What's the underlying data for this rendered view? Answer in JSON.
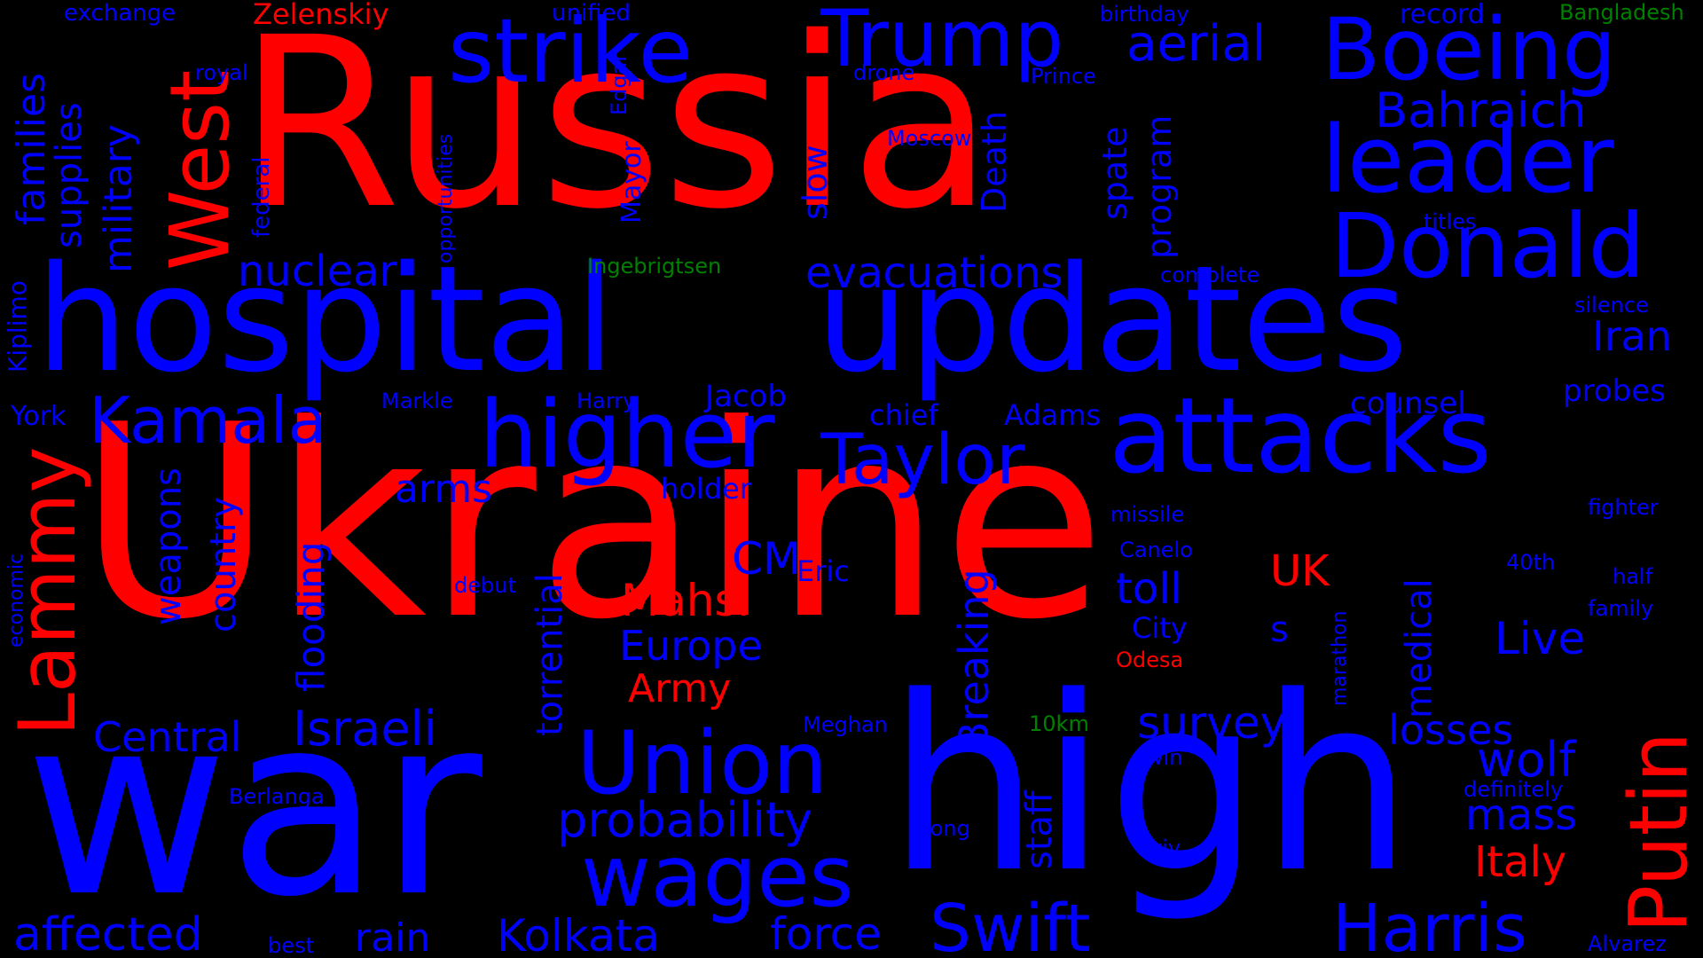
{
  "palette": {
    "red": "#ff0000",
    "blue": "#0000ff",
    "green": "#008000",
    "background": "#000000"
  },
  "words": [
    {
      "id": "ukraine",
      "text": "Ukraine",
      "color": "red"
    },
    {
      "id": "russia",
      "text": "Russia",
      "color": "red"
    },
    {
      "id": "war",
      "text": "war",
      "color": "blue"
    },
    {
      "id": "high",
      "text": "high",
      "color": "blue"
    },
    {
      "id": "hospital",
      "text": "hospital",
      "color": "blue"
    },
    {
      "id": "updates",
      "text": "updates",
      "color": "blue"
    },
    {
      "id": "attacks",
      "text": "attacks",
      "color": "blue"
    },
    {
      "id": "boeing",
      "text": "Boeing",
      "color": "blue"
    },
    {
      "id": "leader",
      "text": "leader",
      "color": "blue"
    },
    {
      "id": "donald",
      "text": "Donald",
      "color": "blue"
    },
    {
      "id": "strike",
      "text": "strike",
      "color": "blue"
    },
    {
      "id": "trump",
      "text": "Trump",
      "color": "blue"
    },
    {
      "id": "higher",
      "text": "higher",
      "color": "blue"
    },
    {
      "id": "union",
      "text": "Union",
      "color": "blue"
    },
    {
      "id": "wages",
      "text": "wages",
      "color": "blue"
    },
    {
      "id": "swift",
      "text": "Swift",
      "color": "blue"
    },
    {
      "id": "harris",
      "text": "Harris",
      "color": "blue"
    },
    {
      "id": "taylor",
      "text": "Taylor",
      "color": "blue"
    },
    {
      "id": "kamala",
      "text": "Kamala",
      "color": "blue"
    },
    {
      "id": "west",
      "text": "West",
      "color": "red"
    },
    {
      "id": "lammy",
      "text": "Lammy",
      "color": "red"
    },
    {
      "id": "putin",
      "text": "Putin",
      "color": "red"
    },
    {
      "id": "zelenskiy",
      "text": "Zelenskiy",
      "color": "red"
    },
    {
      "id": "mahsi",
      "text": "Mahsi",
      "color": "red"
    },
    {
      "id": "army",
      "text": "Army",
      "color": "red"
    },
    {
      "id": "uk",
      "text": "UK",
      "color": "red"
    },
    {
      "id": "italy",
      "text": "Italy",
      "color": "red"
    },
    {
      "id": "odesa",
      "text": "Odesa",
      "color": "red"
    },
    {
      "id": "bahraich",
      "text": "Bahraich",
      "color": "blue"
    },
    {
      "id": "aerial",
      "text": "aerial",
      "color": "blue"
    },
    {
      "id": "evacuations",
      "text": "evacuations",
      "color": "blue"
    },
    {
      "id": "nuclear",
      "text": "nuclear",
      "color": "blue"
    },
    {
      "id": "iran",
      "text": "Iran",
      "color": "blue"
    },
    {
      "id": "probability",
      "text": "probability",
      "color": "blue"
    },
    {
      "id": "kolkata",
      "text": "Kolkata",
      "color": "blue"
    },
    {
      "id": "force",
      "text": "force",
      "color": "blue"
    },
    {
      "id": "affected",
      "text": "affected",
      "color": "blue"
    },
    {
      "id": "rain",
      "text": "rain",
      "color": "blue"
    },
    {
      "id": "israeli",
      "text": "Israeli",
      "color": "blue"
    },
    {
      "id": "central",
      "text": "Central",
      "color": "blue"
    },
    {
      "id": "survey",
      "text": "survey",
      "color": "blue"
    },
    {
      "id": "losses",
      "text": "losses",
      "color": "blue"
    },
    {
      "id": "wolf",
      "text": "wolf",
      "color": "blue"
    },
    {
      "id": "mass",
      "text": "mass",
      "color": "blue"
    },
    {
      "id": "live",
      "text": "Live",
      "color": "blue"
    },
    {
      "id": "toll",
      "text": "toll",
      "color": "blue"
    },
    {
      "id": "europe",
      "text": "Europe",
      "color": "blue"
    },
    {
      "id": "cm",
      "text": "CM",
      "color": "blue"
    },
    {
      "id": "arms",
      "text": "arms",
      "color": "blue"
    },
    {
      "id": "military",
      "text": "military",
      "color": "blue"
    },
    {
      "id": "supplies",
      "text": "supplies",
      "color": "blue"
    },
    {
      "id": "families",
      "text": "families",
      "color": "blue"
    },
    {
      "id": "weapons",
      "text": "weapons",
      "color": "blue"
    },
    {
      "id": "country",
      "text": "country",
      "color": "blue"
    },
    {
      "id": "flooding",
      "text": "flooding",
      "color": "blue"
    },
    {
      "id": "torrential",
      "text": "torrential",
      "color": "blue"
    },
    {
      "id": "breaking",
      "text": "Breaking",
      "color": "blue"
    },
    {
      "id": "staff",
      "text": "staff",
      "color": "blue"
    },
    {
      "id": "medical",
      "text": "medical",
      "color": "blue"
    },
    {
      "id": "death",
      "text": "Death",
      "color": "blue"
    },
    {
      "id": "slow",
      "text": "slow",
      "color": "blue"
    },
    {
      "id": "spate",
      "text": "spate",
      "color": "blue"
    },
    {
      "id": "program",
      "text": "program",
      "color": "blue"
    },
    {
      "id": "counsel",
      "text": "counsel",
      "color": "blue"
    },
    {
      "id": "probes",
      "text": "probes",
      "color": "blue"
    },
    {
      "id": "chief",
      "text": "chief",
      "color": "blue"
    },
    {
      "id": "adams",
      "text": "Adams",
      "color": "blue"
    },
    {
      "id": "jacob",
      "text": "Jacob",
      "color": "blue"
    },
    {
      "id": "holder",
      "text": "holder",
      "color": "blue"
    },
    {
      "id": "eric",
      "text": "Eric",
      "color": "blue"
    },
    {
      "id": "city",
      "text": "City",
      "color": "blue"
    },
    {
      "id": "york",
      "text": "York",
      "color": "blue"
    },
    {
      "id": "kiplimo",
      "text": "Kiplimo",
      "color": "blue"
    },
    {
      "id": "record",
      "text": "record",
      "color": "blue"
    },
    {
      "id": "exchange",
      "text": "exchange",
      "color": "blue"
    },
    {
      "id": "unified",
      "text": "unified",
      "color": "blue"
    },
    {
      "id": "birthday",
      "text": "birthday",
      "color": "blue"
    },
    {
      "id": "royal",
      "text": "royal",
      "color": "blue"
    },
    {
      "id": "drone",
      "text": "drone",
      "color": "blue"
    },
    {
      "id": "prince",
      "text": "Prince",
      "color": "blue"
    },
    {
      "id": "moscow",
      "text": "Moscow",
      "color": "blue"
    },
    {
      "id": "titles",
      "text": "titles",
      "color": "blue"
    },
    {
      "id": "complete",
      "text": "complete",
      "color": "blue"
    },
    {
      "id": "silence",
      "text": "silence",
      "color": "blue"
    },
    {
      "id": "markle",
      "text": "Markle",
      "color": "blue"
    },
    {
      "id": "harry",
      "text": "Harry",
      "color": "blue"
    },
    {
      "id": "missile",
      "text": "missile",
      "color": "blue"
    },
    {
      "id": "fighter",
      "text": "fighter",
      "color": "blue"
    },
    {
      "id": "canelo",
      "text": "Canelo",
      "color": "blue"
    },
    {
      "id": "debut",
      "text": "debut",
      "color": "blue"
    },
    {
      "id": "fortieth",
      "text": "40th",
      "color": "blue"
    },
    {
      "id": "half",
      "text": "half",
      "color": "blue"
    },
    {
      "id": "family",
      "text": "family",
      "color": "blue"
    },
    {
      "id": "meghan",
      "text": "Meghan",
      "color": "blue"
    },
    {
      "id": "win",
      "text": "win",
      "color": "blue"
    },
    {
      "id": "definitely",
      "text": "definitely",
      "color": "blue"
    },
    {
      "id": "berlanga",
      "text": "Berlanga",
      "color": "blue"
    },
    {
      "id": "long",
      "text": "long",
      "color": "blue"
    },
    {
      "id": "kyiv",
      "text": "Kyiv",
      "color": "blue"
    },
    {
      "id": "best",
      "text": "best",
      "color": "blue"
    },
    {
      "id": "alvarez",
      "text": "Alvarez",
      "color": "blue"
    },
    {
      "id": "s",
      "text": "s",
      "color": "blue"
    },
    {
      "id": "federal",
      "text": "federal",
      "color": "blue"
    },
    {
      "id": "opportunities",
      "text": "opportunities",
      "color": "blue"
    },
    {
      "id": "mayor",
      "text": "Mayor",
      "color": "blue"
    },
    {
      "id": "edgar",
      "text": "Edgar",
      "color": "blue"
    },
    {
      "id": "economic",
      "text": "economic",
      "color": "blue"
    },
    {
      "id": "marathon",
      "text": "marathon",
      "color": "blue"
    },
    {
      "id": "ingebrigtsen",
      "text": "Ingebrigtsen",
      "color": "green"
    },
    {
      "id": "bangladesh",
      "text": "Bangladesh",
      "color": "green"
    },
    {
      "id": "tenkm",
      "text": "10km",
      "color": "green"
    }
  ]
}
